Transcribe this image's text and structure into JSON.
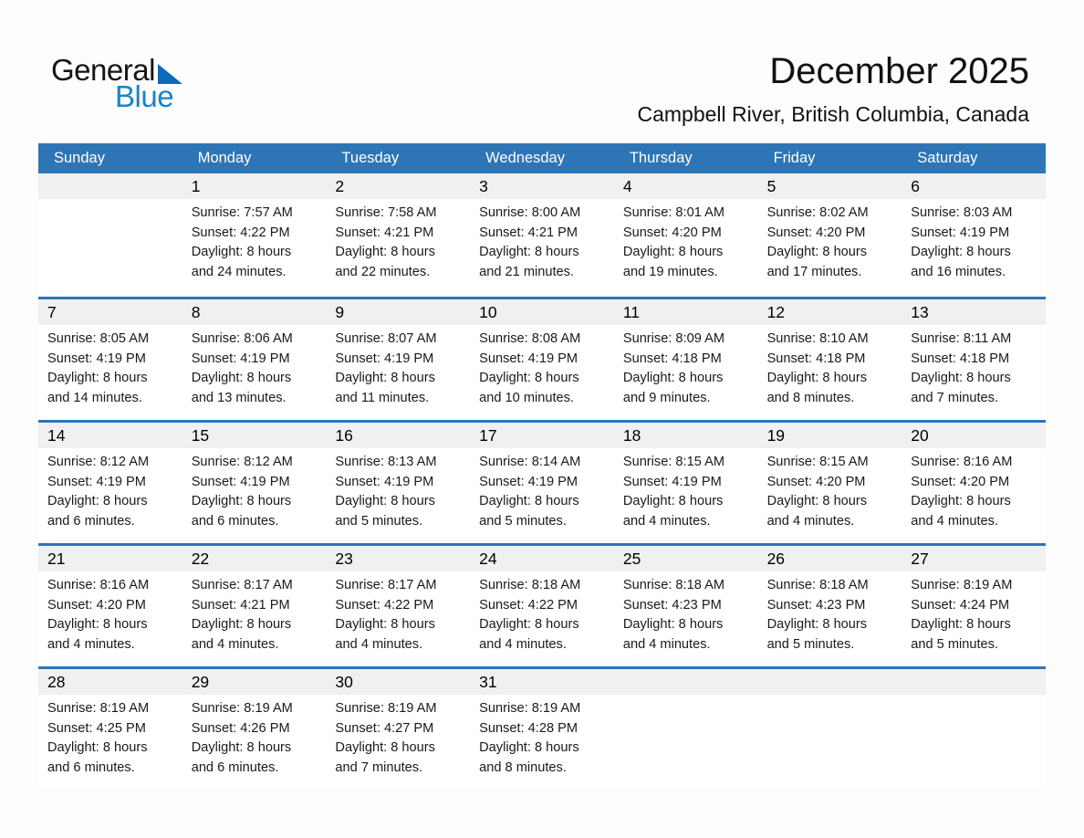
{
  "logo": {
    "word1": "General",
    "word2": "Blue"
  },
  "header": {
    "title": "December 2025",
    "subtitle": "Campbell River, British Columbia, Canada"
  },
  "colors": {
    "accent_blue": "#2e75b5",
    "band_gray": "#f0f0f0",
    "logo_blue": "#1b82c9",
    "logo_triangle_blue": "#0b6bb7",
    "weekday_text": "#ffffff"
  },
  "weekday_header": [
    "Sunday",
    "Monday",
    "Tuesday",
    "Wednesday",
    "Thursday",
    "Friday",
    "Saturday"
  ],
  "weeks": [
    [
      null,
      {
        "day": "1",
        "lines": [
          "Sunrise: 7:57 AM",
          "Sunset: 4:22 PM",
          "Daylight: 8 hours",
          "and 24 minutes."
        ]
      },
      {
        "day": "2",
        "lines": [
          "Sunrise: 7:58 AM",
          "Sunset: 4:21 PM",
          "Daylight: 8 hours",
          "and 22 minutes."
        ]
      },
      {
        "day": "3",
        "lines": [
          "Sunrise: 8:00 AM",
          "Sunset: 4:21 PM",
          "Daylight: 8 hours",
          "and 21 minutes."
        ]
      },
      {
        "day": "4",
        "lines": [
          "Sunrise: 8:01 AM",
          "Sunset: 4:20 PM",
          "Daylight: 8 hours",
          "and 19 minutes."
        ]
      },
      {
        "day": "5",
        "lines": [
          "Sunrise: 8:02 AM",
          "Sunset: 4:20 PM",
          "Daylight: 8 hours",
          "and 17 minutes."
        ]
      },
      {
        "day": "6",
        "lines": [
          "Sunrise: 8:03 AM",
          "Sunset: 4:19 PM",
          "Daylight: 8 hours",
          "and 16 minutes."
        ]
      }
    ],
    [
      {
        "day": "7",
        "lines": [
          "Sunrise: 8:05 AM",
          "Sunset: 4:19 PM",
          "Daylight: 8 hours",
          "and 14 minutes."
        ]
      },
      {
        "day": "8",
        "lines": [
          "Sunrise: 8:06 AM",
          "Sunset: 4:19 PM",
          "Daylight: 8 hours",
          "and 13 minutes."
        ]
      },
      {
        "day": "9",
        "lines": [
          "Sunrise: 8:07 AM",
          "Sunset: 4:19 PM",
          "Daylight: 8 hours",
          "and 11 minutes."
        ]
      },
      {
        "day": "10",
        "lines": [
          "Sunrise: 8:08 AM",
          "Sunset: 4:19 PM",
          "Daylight: 8 hours",
          "and 10 minutes."
        ]
      },
      {
        "day": "11",
        "lines": [
          "Sunrise: 8:09 AM",
          "Sunset: 4:18 PM",
          "Daylight: 8 hours",
          "and 9 minutes."
        ]
      },
      {
        "day": "12",
        "lines": [
          "Sunrise: 8:10 AM",
          "Sunset: 4:18 PM",
          "Daylight: 8 hours",
          "and 8 minutes."
        ]
      },
      {
        "day": "13",
        "lines": [
          "Sunrise: 8:11 AM",
          "Sunset: 4:18 PM",
          "Daylight: 8 hours",
          "and 7 minutes."
        ]
      }
    ],
    [
      {
        "day": "14",
        "lines": [
          "Sunrise: 8:12 AM",
          "Sunset: 4:19 PM",
          "Daylight: 8 hours",
          "and 6 minutes."
        ]
      },
      {
        "day": "15",
        "lines": [
          "Sunrise: 8:12 AM",
          "Sunset: 4:19 PM",
          "Daylight: 8 hours",
          "and 6 minutes."
        ]
      },
      {
        "day": "16",
        "lines": [
          "Sunrise: 8:13 AM",
          "Sunset: 4:19 PM",
          "Daylight: 8 hours",
          "and 5 minutes."
        ]
      },
      {
        "day": "17",
        "lines": [
          "Sunrise: 8:14 AM",
          "Sunset: 4:19 PM",
          "Daylight: 8 hours",
          "and 5 minutes."
        ]
      },
      {
        "day": "18",
        "lines": [
          "Sunrise: 8:15 AM",
          "Sunset: 4:19 PM",
          "Daylight: 8 hours",
          "and 4 minutes."
        ]
      },
      {
        "day": "19",
        "lines": [
          "Sunrise: 8:15 AM",
          "Sunset: 4:20 PM",
          "Daylight: 8 hours",
          "and 4 minutes."
        ]
      },
      {
        "day": "20",
        "lines": [
          "Sunrise: 8:16 AM",
          "Sunset: 4:20 PM",
          "Daylight: 8 hours",
          "and 4 minutes."
        ]
      }
    ],
    [
      {
        "day": "21",
        "lines": [
          "Sunrise: 8:16 AM",
          "Sunset: 4:20 PM",
          "Daylight: 8 hours",
          "and 4 minutes."
        ]
      },
      {
        "day": "22",
        "lines": [
          "Sunrise: 8:17 AM",
          "Sunset: 4:21 PM",
          "Daylight: 8 hours",
          "and 4 minutes."
        ]
      },
      {
        "day": "23",
        "lines": [
          "Sunrise: 8:17 AM",
          "Sunset: 4:22 PM",
          "Daylight: 8 hours",
          "and 4 minutes."
        ]
      },
      {
        "day": "24",
        "lines": [
          "Sunrise: 8:18 AM",
          "Sunset: 4:22 PM",
          "Daylight: 8 hours",
          "and 4 minutes."
        ]
      },
      {
        "day": "25",
        "lines": [
          "Sunrise: 8:18 AM",
          "Sunset: 4:23 PM",
          "Daylight: 8 hours",
          "and 4 minutes."
        ]
      },
      {
        "day": "26",
        "lines": [
          "Sunrise: 8:18 AM",
          "Sunset: 4:23 PM",
          "Daylight: 8 hours",
          "and 5 minutes."
        ]
      },
      {
        "day": "27",
        "lines": [
          "Sunrise: 8:19 AM",
          "Sunset: 4:24 PM",
          "Daylight: 8 hours",
          "and 5 minutes."
        ]
      }
    ],
    [
      {
        "day": "28",
        "lines": [
          "Sunrise: 8:19 AM",
          "Sunset: 4:25 PM",
          "Daylight: 8 hours",
          "and 6 minutes."
        ]
      },
      {
        "day": "29",
        "lines": [
          "Sunrise: 8:19 AM",
          "Sunset: 4:26 PM",
          "Daylight: 8 hours",
          "and 6 minutes."
        ]
      },
      {
        "day": "30",
        "lines": [
          "Sunrise: 8:19 AM",
          "Sunset: 4:27 PM",
          "Daylight: 8 hours",
          "and 7 minutes."
        ]
      },
      {
        "day": "31",
        "lines": [
          "Sunrise: 8:19 AM",
          "Sunset: 4:28 PM",
          "Daylight: 8 hours",
          "and 8 minutes."
        ]
      },
      null,
      null,
      null
    ]
  ]
}
